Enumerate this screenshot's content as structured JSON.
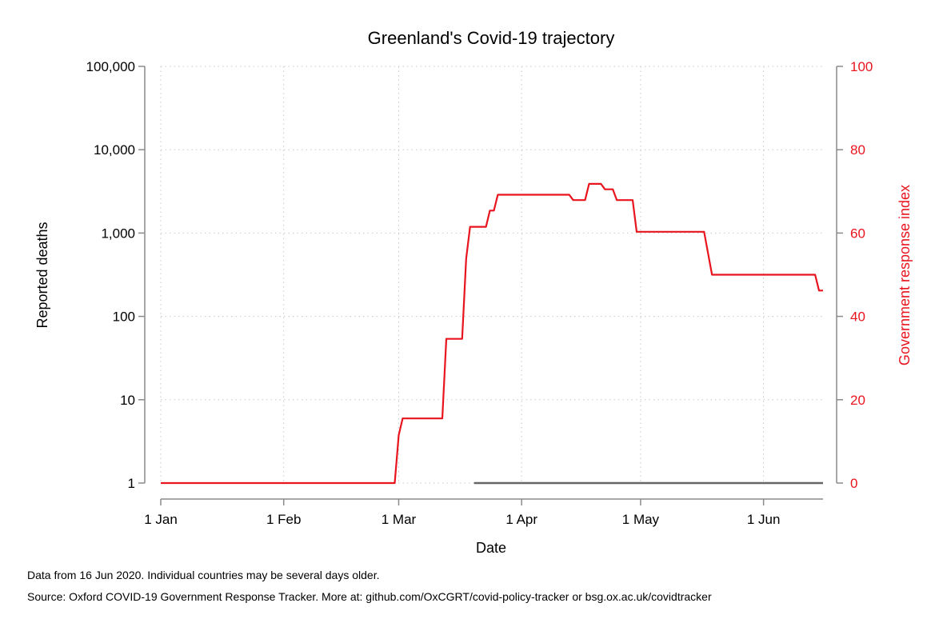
{
  "chart_data": {
    "type": "line",
    "title": "Greenland's Covid-19 trajectory",
    "xlabel": "Date",
    "ylabel_left": "Reported deaths",
    "ylabel_right": "Government response index",
    "x_axis": {
      "type": "date",
      "range": [
        "2020-01-01",
        "2020-06-16"
      ],
      "ticks": [
        {
          "date": "2020-01-01",
          "label": "1 Jan"
        },
        {
          "date": "2020-02-01",
          "label": "1 Feb"
        },
        {
          "date": "2020-03-01",
          "label": "1 Mar"
        },
        {
          "date": "2020-04-01",
          "label": "1 Apr"
        },
        {
          "date": "2020-05-01",
          "label": "1 May"
        },
        {
          "date": "2020-06-01",
          "label": "1 Jun"
        }
      ]
    },
    "y_left": {
      "scale": "log",
      "range": [
        1,
        100000
      ],
      "ticks": [
        {
          "value": 1,
          "label": "1"
        },
        {
          "value": 10,
          "label": "10"
        },
        {
          "value": 100,
          "label": "100"
        },
        {
          "value": 1000,
          "label": "1,000"
        },
        {
          "value": 10000,
          "label": "10,000"
        },
        {
          "value": 100000,
          "label": "100,000"
        }
      ]
    },
    "y_right": {
      "scale": "linear",
      "range": [
        0,
        100
      ],
      "ticks": [
        {
          "value": 0,
          "label": "0"
        },
        {
          "value": 20,
          "label": "20"
        },
        {
          "value": 40,
          "label": "40"
        },
        {
          "value": 60,
          "label": "60"
        },
        {
          "value": 80,
          "label": "80"
        },
        {
          "value": 100,
          "label": "100"
        }
      ]
    },
    "grid": true,
    "series": [
      {
        "axis": "left",
        "color": "#666666",
        "points": [
          {
            "date": "2020-03-20",
            "value": 1
          },
          {
            "date": "2020-06-16",
            "value": 1
          }
        ]
      },
      {
        "axis": "right",
        "color": "#e8141e",
        "points": [
          {
            "date": "2020-01-01",
            "value": 0
          },
          {
            "date": "2020-02-29",
            "value": 0
          },
          {
            "date": "2020-03-01",
            "value": 11.5
          },
          {
            "date": "2020-03-02",
            "value": 15.5
          },
          {
            "date": "2020-03-12",
            "value": 15.5
          },
          {
            "date": "2020-03-13",
            "value": 34.6
          },
          {
            "date": "2020-03-17",
            "value": 34.6
          },
          {
            "date": "2020-03-18",
            "value": 53.8
          },
          {
            "date": "2020-03-19",
            "value": 61.5
          },
          {
            "date": "2020-03-23",
            "value": 61.5
          },
          {
            "date": "2020-03-24",
            "value": 65.4
          },
          {
            "date": "2020-03-25",
            "value": 65.4
          },
          {
            "date": "2020-03-26",
            "value": 69.2
          },
          {
            "date": "2020-04-13",
            "value": 69.2
          },
          {
            "date": "2020-04-14",
            "value": 67.9
          },
          {
            "date": "2020-04-17",
            "value": 67.9
          },
          {
            "date": "2020-04-18",
            "value": 71.8
          },
          {
            "date": "2020-04-21",
            "value": 71.8
          },
          {
            "date": "2020-04-22",
            "value": 70.5
          },
          {
            "date": "2020-04-24",
            "value": 70.5
          },
          {
            "date": "2020-04-25",
            "value": 67.9
          },
          {
            "date": "2020-04-29",
            "value": 67.9
          },
          {
            "date": "2020-04-30",
            "value": 60.3
          },
          {
            "date": "2020-05-17",
            "value": 60.3
          },
          {
            "date": "2020-05-19",
            "value": 50
          },
          {
            "date": "2020-06-14",
            "value": 50
          },
          {
            "date": "2020-06-15",
            "value": 46.2
          },
          {
            "date": "2020-06-16",
            "value": 46.2
          }
        ]
      }
    ]
  },
  "footnotes": {
    "line1": "Data from 16 Jun 2020. Individual countries may be several days older.",
    "line2": "Source: Oxford COVID-19 Government Response Tracker. More at: github.com/OxCGRT/covid-policy-tracker or bsg.ox.ac.uk/covidtracker"
  }
}
